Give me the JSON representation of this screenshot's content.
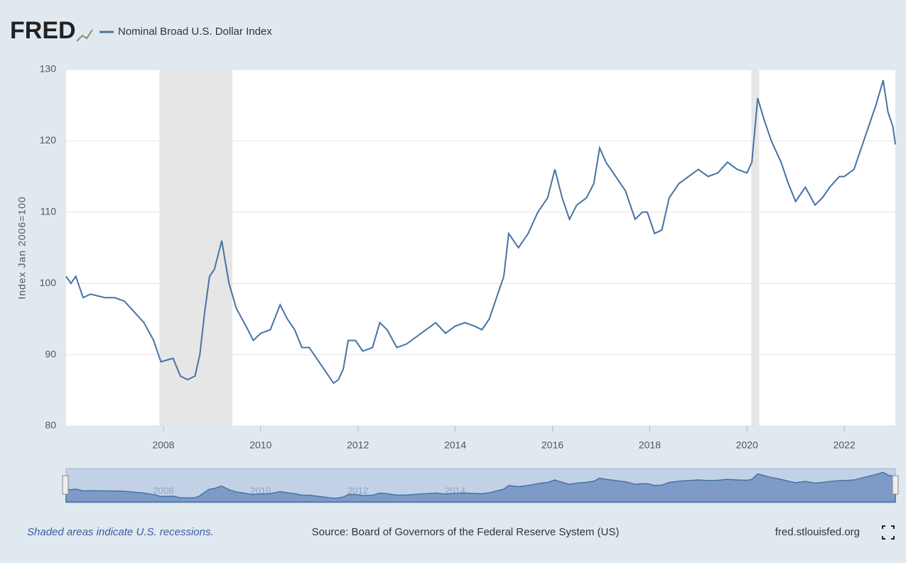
{
  "chart_data": {
    "type": "line",
    "logo": "FRED",
    "ylabel": "Index Jan 2006=100",
    "note": "Shaded areas indicate U.S. recessions.",
    "source": "Source: Board of Governors of the Federal Reserve System (US)",
    "site": "fred.stlouisfed.org",
    "xlim": [
      2006.0,
      2023.05
    ],
    "xticks": [
      2008,
      2010,
      2012,
      2014,
      2016,
      2018,
      2020,
      2022
    ],
    "ylim": [
      80,
      130
    ],
    "yticks": [
      80,
      90,
      100,
      110,
      120,
      130
    ],
    "grid": true,
    "recessions": [
      [
        2007.92,
        2009.42
      ],
      [
        2020.09,
        2020.25
      ]
    ],
    "recession_color": "#e6e6e6",
    "x": [
      2006.0,
      2006.1,
      2006.2,
      2006.35,
      2006.5,
      2006.8,
      2007.0,
      2007.2,
      2007.4,
      2007.6,
      2007.8,
      2007.95,
      2008.2,
      2008.35,
      2008.5,
      2008.65,
      2008.75,
      2008.85,
      2008.95,
      2009.05,
      2009.2,
      2009.35,
      2009.5,
      2009.7,
      2009.85,
      2010.0,
      2010.2,
      2010.4,
      2010.55,
      2010.7,
      2010.85,
      2011.0,
      2011.2,
      2011.35,
      2011.5,
      2011.6,
      2011.7,
      2011.8,
      2011.95,
      2012.1,
      2012.3,
      2012.45,
      2012.6,
      2012.8,
      2013.0,
      2013.2,
      2013.4,
      2013.6,
      2013.8,
      2014.0,
      2014.2,
      2014.4,
      2014.55,
      2014.7,
      2014.85,
      2015.0,
      2015.1,
      2015.3,
      2015.5,
      2015.7,
      2015.9,
      2016.05,
      2016.2,
      2016.35,
      2016.5,
      2016.7,
      2016.85,
      2016.97,
      2017.1,
      2017.3,
      2017.5,
      2017.7,
      2017.85,
      2017.95,
      2018.1,
      2018.25,
      2018.4,
      2018.6,
      2018.8,
      2019.0,
      2019.2,
      2019.4,
      2019.6,
      2019.8,
      2020.0,
      2020.1,
      2020.22,
      2020.35,
      2020.5,
      2020.7,
      2020.85,
      2021.0,
      2021.2,
      2021.4,
      2021.55,
      2021.7,
      2021.9,
      2022.0,
      2022.2,
      2022.35,
      2022.5,
      2022.65,
      2022.8,
      2022.9,
      2023.0,
      2023.05
    ],
    "series": [
      {
        "name": "Nominal Broad U.S. Dollar Index",
        "color": "#4572a7",
        "values": [
          101,
          100,
          101,
          98,
          98.5,
          98,
          98,
          97.5,
          96,
          94.5,
          92,
          89,
          89.5,
          87,
          86.5,
          87,
          90,
          96,
          101,
          102,
          106,
          100,
          96.5,
          94,
          92,
          93,
          93.5,
          97,
          95,
          93.5,
          91,
          91,
          89,
          87.5,
          86,
          86.5,
          88,
          92,
          92,
          90.5,
          91,
          94.5,
          93.5,
          91,
          91.5,
          92.5,
          93.5,
          94.5,
          93,
          94,
          94.5,
          94,
          93.5,
          95,
          98,
          101,
          107,
          105,
          107,
          110,
          112,
          116,
          112,
          109,
          111,
          112,
          114,
          119,
          117,
          115,
          113,
          109,
          110,
          110,
          107,
          107.5,
          112,
          114,
          115,
          116,
          115,
          115.5,
          117,
          116,
          115.5,
          117,
          126,
          123,
          120,
          117,
          114,
          111.5,
          113.5,
          111,
          112,
          113.5,
          115,
          115,
          116,
          119,
          122,
          125,
          128.5,
          124,
          122,
          119.5
        ]
      }
    ]
  }
}
